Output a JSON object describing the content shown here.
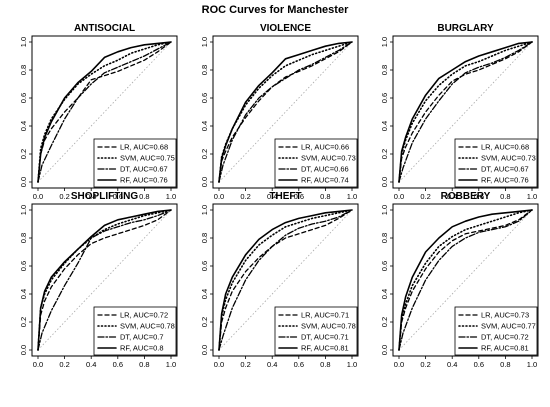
{
  "page": {
    "title": "ROC Curves for Manchester"
  },
  "legend_position": "bottom-right",
  "series_styles": {
    "LR": {
      "dash": "4,3",
      "width": 1.3
    },
    "SVM": {
      "dash": "1,2.5",
      "width": 1.6
    },
    "DT": {
      "dash": "6,2,1.5,2",
      "width": 1.3
    },
    "RF": {
      "dash": "",
      "width": 1.6
    }
  },
  "chart_data": [
    {
      "type": "line",
      "title": "ANTISOCIAL",
      "xlim": [
        0,
        1
      ],
      "ylim": [
        0,
        1
      ],
      "xticks": [
        "0.0",
        "0.2",
        "0.4",
        "0.6",
        "0.8",
        "1.0"
      ],
      "yticks": [
        "0.0",
        "0.2",
        "0.4",
        "0.6",
        "0.8",
        "1.0"
      ],
      "reference_line": true,
      "series": [
        {
          "name": "LR",
          "label": "LR, AUC=0.68",
          "x": [
            0,
            0.02,
            0.05,
            0.1,
            0.2,
            0.3,
            0.4,
            0.5,
            0.6,
            0.7,
            0.8,
            0.9,
            1.0
          ],
          "y": [
            0,
            0.2,
            0.3,
            0.38,
            0.5,
            0.6,
            0.73,
            0.76,
            0.79,
            0.83,
            0.87,
            0.93,
            1.0
          ]
        },
        {
          "name": "SVM",
          "label": "SVM, AUC=0.75",
          "x": [
            0,
            0.02,
            0.05,
            0.1,
            0.2,
            0.3,
            0.4,
            0.5,
            0.6,
            0.7,
            0.8,
            0.9,
            1.0
          ],
          "y": [
            0,
            0.24,
            0.34,
            0.45,
            0.59,
            0.7,
            0.77,
            0.83,
            0.87,
            0.92,
            0.95,
            0.98,
            1.0
          ]
        },
        {
          "name": "DT",
          "label": "DT, AUC=0.67",
          "x": [
            0,
            0.03,
            0.1,
            0.2,
            0.3,
            0.4,
            0.5,
            0.6,
            0.7,
            0.8,
            0.9,
            1.0
          ],
          "y": [
            0,
            0.12,
            0.26,
            0.45,
            0.6,
            0.7,
            0.78,
            0.82,
            0.86,
            0.9,
            0.95,
            1.0
          ]
        },
        {
          "name": "RF",
          "label": "RF, AUC=0.76",
          "x": [
            0,
            0.02,
            0.05,
            0.1,
            0.2,
            0.3,
            0.4,
            0.5,
            0.6,
            0.7,
            0.8,
            0.9,
            1.0
          ],
          "y": [
            0,
            0.2,
            0.32,
            0.43,
            0.6,
            0.71,
            0.79,
            0.89,
            0.93,
            0.96,
            0.98,
            0.99,
            1.0
          ]
        }
      ]
    },
    {
      "type": "line",
      "title": "VIOLENCE",
      "xlim": [
        0,
        1
      ],
      "ylim": [
        0,
        1
      ],
      "xticks": [
        "0.0",
        "0.2",
        "0.4",
        "0.6",
        "0.8",
        "1.0"
      ],
      "yticks": [
        "0.0",
        "0.2",
        "0.4",
        "0.6",
        "0.8",
        "1.0"
      ],
      "reference_line": true,
      "series": [
        {
          "name": "LR",
          "label": "LR, AUC=0.66",
          "x": [
            0,
            0.02,
            0.05,
            0.1,
            0.2,
            0.3,
            0.4,
            0.5,
            0.6,
            0.7,
            0.8,
            0.9,
            1.0
          ],
          "y": [
            0,
            0.15,
            0.22,
            0.32,
            0.46,
            0.58,
            0.68,
            0.75,
            0.79,
            0.83,
            0.88,
            0.93,
            1.0
          ]
        },
        {
          "name": "SVM",
          "label": "SVM, AUC=0.73",
          "x": [
            0,
            0.02,
            0.05,
            0.1,
            0.2,
            0.3,
            0.4,
            0.5,
            0.6,
            0.7,
            0.8,
            0.9,
            1.0
          ],
          "y": [
            0,
            0.18,
            0.27,
            0.38,
            0.55,
            0.67,
            0.76,
            0.83,
            0.87,
            0.91,
            0.94,
            0.97,
            1.0
          ]
        },
        {
          "name": "DT",
          "label": "DT, AUC=0.66",
          "x": [
            0,
            0.03,
            0.1,
            0.2,
            0.3,
            0.4,
            0.5,
            0.6,
            0.7,
            0.8,
            0.9,
            1.0
          ],
          "y": [
            0,
            0.12,
            0.3,
            0.48,
            0.6,
            0.68,
            0.74,
            0.8,
            0.84,
            0.89,
            0.94,
            1.0
          ]
        },
        {
          "name": "RF",
          "label": "RF, AUC=0.74",
          "x": [
            0,
            0.02,
            0.05,
            0.1,
            0.2,
            0.3,
            0.4,
            0.5,
            0.6,
            0.7,
            0.8,
            0.9,
            1.0
          ],
          "y": [
            0,
            0.17,
            0.26,
            0.38,
            0.57,
            0.69,
            0.78,
            0.88,
            0.91,
            0.94,
            0.97,
            0.99,
            1.0
          ]
        }
      ]
    },
    {
      "type": "line",
      "title": "BURGLARY",
      "xlim": [
        0,
        1
      ],
      "ylim": [
        0,
        1
      ],
      "xticks": [
        "0.0",
        "0.2",
        "0.4",
        "0.6",
        "0.8",
        "1.0"
      ],
      "yticks": [
        "0.0",
        "0.2",
        "0.4",
        "0.6",
        "0.8",
        "1.0"
      ],
      "reference_line": true,
      "series": [
        {
          "name": "LR",
          "label": "LR, AUC=0.68",
          "x": [
            0,
            0.02,
            0.05,
            0.1,
            0.2,
            0.3,
            0.4,
            0.5,
            0.6,
            0.7,
            0.8,
            0.9,
            1.0
          ],
          "y": [
            0,
            0.17,
            0.25,
            0.35,
            0.5,
            0.62,
            0.72,
            0.77,
            0.8,
            0.84,
            0.88,
            0.93,
            1.0
          ]
        },
        {
          "name": "SVM",
          "label": "SVM, AUC=0.73",
          "x": [
            0,
            0.02,
            0.05,
            0.1,
            0.2,
            0.3,
            0.4,
            0.5,
            0.6,
            0.7,
            0.8,
            0.9,
            1.0
          ],
          "y": [
            0,
            0.2,
            0.3,
            0.42,
            0.58,
            0.69,
            0.77,
            0.83,
            0.86,
            0.9,
            0.94,
            0.97,
            1.0
          ]
        },
        {
          "name": "DT",
          "label": "DT, AUC=0.67",
          "x": [
            0,
            0.03,
            0.1,
            0.2,
            0.3,
            0.4,
            0.5,
            0.6,
            0.7,
            0.8,
            0.9,
            1.0
          ],
          "y": [
            0,
            0.1,
            0.28,
            0.45,
            0.58,
            0.7,
            0.78,
            0.82,
            0.85,
            0.89,
            0.94,
            1.0
          ]
        },
        {
          "name": "RF",
          "label": "RF, AUC=0.76",
          "x": [
            0,
            0.02,
            0.05,
            0.1,
            0.2,
            0.3,
            0.4,
            0.5,
            0.6,
            0.7,
            0.8,
            0.9,
            1.0
          ],
          "y": [
            0,
            0.22,
            0.32,
            0.45,
            0.62,
            0.74,
            0.8,
            0.86,
            0.9,
            0.93,
            0.96,
            0.99,
            1.0
          ]
        }
      ]
    },
    {
      "type": "line",
      "title": "SHOPLIFTING",
      "xlim": [
        0,
        1
      ],
      "ylim": [
        0,
        1
      ],
      "xticks": [
        "0.0",
        "0.2",
        "0.4",
        "0.6",
        "0.8",
        "1.0"
      ],
      "yticks": [
        "0.0",
        "0.2",
        "0.4",
        "0.6",
        "0.8",
        "1.0"
      ],
      "reference_line": true,
      "series": [
        {
          "name": "LR",
          "label": "LR, AUC=0.72",
          "x": [
            0,
            0.02,
            0.05,
            0.1,
            0.2,
            0.3,
            0.4,
            0.5,
            0.6,
            0.7,
            0.8,
            0.9,
            1.0
          ],
          "y": [
            0,
            0.25,
            0.35,
            0.45,
            0.58,
            0.68,
            0.76,
            0.8,
            0.83,
            0.86,
            0.89,
            0.93,
            1.0
          ]
        },
        {
          "name": "SVM",
          "label": "SVM, AUC=0.78",
          "x": [
            0,
            0.02,
            0.05,
            0.1,
            0.2,
            0.3,
            0.4,
            0.5,
            0.6,
            0.7,
            0.8,
            0.9,
            1.0
          ],
          "y": [
            0,
            0.3,
            0.4,
            0.5,
            0.62,
            0.72,
            0.8,
            0.86,
            0.9,
            0.93,
            0.96,
            0.98,
            1.0
          ]
        },
        {
          "name": "DT",
          "label": "DT, AUC=0.7",
          "x": [
            0,
            0.03,
            0.1,
            0.2,
            0.3,
            0.4,
            0.5,
            0.6,
            0.7,
            0.8,
            0.9,
            1.0
          ],
          "y": [
            0,
            0.12,
            0.28,
            0.46,
            0.62,
            0.8,
            0.85,
            0.88,
            0.91,
            0.93,
            0.96,
            1.0
          ]
        },
        {
          "name": "RF",
          "label": "RF, AUC=0.8",
          "x": [
            0,
            0.02,
            0.05,
            0.1,
            0.2,
            0.3,
            0.4,
            0.5,
            0.6,
            0.7,
            0.8,
            0.9,
            1.0
          ],
          "y": [
            0,
            0.3,
            0.42,
            0.52,
            0.63,
            0.72,
            0.81,
            0.89,
            0.93,
            0.95,
            0.97,
            0.99,
            1.0
          ]
        }
      ]
    },
    {
      "type": "line",
      "title": "THEFT",
      "xlim": [
        0,
        1
      ],
      "ylim": [
        0,
        1
      ],
      "xticks": [
        "0.0",
        "0.2",
        "0.4",
        "0.6",
        "0.8",
        "1.0"
      ],
      "yticks": [
        "0.0",
        "0.2",
        "0.4",
        "0.6",
        "0.8",
        "1.0"
      ],
      "reference_line": true,
      "series": [
        {
          "name": "LR",
          "label": "LR, AUC=0.71",
          "x": [
            0,
            0.02,
            0.05,
            0.1,
            0.2,
            0.3,
            0.4,
            0.5,
            0.6,
            0.7,
            0.8,
            0.9,
            1.0
          ],
          "y": [
            0,
            0.2,
            0.3,
            0.42,
            0.56,
            0.66,
            0.74,
            0.8,
            0.83,
            0.86,
            0.89,
            0.94,
            1.0
          ]
        },
        {
          "name": "SVM",
          "label": "SVM, AUC=0.78",
          "x": [
            0,
            0.02,
            0.05,
            0.1,
            0.2,
            0.3,
            0.4,
            0.5,
            0.6,
            0.7,
            0.8,
            0.9,
            1.0
          ],
          "y": [
            0,
            0.24,
            0.36,
            0.48,
            0.64,
            0.75,
            0.82,
            0.88,
            0.91,
            0.94,
            0.96,
            0.98,
            1.0
          ]
        },
        {
          "name": "DT",
          "label": "DT, AUC=0.71",
          "x": [
            0,
            0.03,
            0.1,
            0.2,
            0.3,
            0.4,
            0.5,
            0.6,
            0.7,
            0.8,
            0.9,
            1.0
          ],
          "y": [
            0,
            0.1,
            0.3,
            0.5,
            0.64,
            0.74,
            0.82,
            0.87,
            0.9,
            0.92,
            0.95,
            1.0
          ]
        },
        {
          "name": "RF",
          "label": "RF, AUC=0.81",
          "x": [
            0,
            0.02,
            0.05,
            0.1,
            0.2,
            0.3,
            0.4,
            0.5,
            0.6,
            0.7,
            0.8,
            0.9,
            1.0
          ],
          "y": [
            0,
            0.26,
            0.4,
            0.52,
            0.68,
            0.79,
            0.86,
            0.91,
            0.94,
            0.96,
            0.98,
            0.99,
            1.0
          ]
        }
      ]
    },
    {
      "type": "line",
      "title": "ROBBERY",
      "xlim": [
        0,
        1
      ],
      "ylim": [
        0,
        1
      ],
      "xticks": [
        "0.0",
        "0.2",
        "0.4",
        "0.6",
        "0.8",
        "1.0"
      ],
      "yticks": [
        "0.0",
        "0.2",
        "0.4",
        "0.6",
        "0.8",
        "1.0"
      ],
      "reference_line": true,
      "series": [
        {
          "name": "LR",
          "label": "LR, AUC=0.73",
          "x": [
            0,
            0.02,
            0.05,
            0.1,
            0.2,
            0.3,
            0.4,
            0.5,
            0.6,
            0.7,
            0.8,
            0.9,
            1.0
          ],
          "y": [
            0,
            0.2,
            0.3,
            0.42,
            0.58,
            0.7,
            0.78,
            0.83,
            0.85,
            0.87,
            0.89,
            0.93,
            1.0
          ]
        },
        {
          "name": "SVM",
          "label": "SVM, AUC=0.77",
          "x": [
            0,
            0.02,
            0.05,
            0.1,
            0.2,
            0.3,
            0.4,
            0.5,
            0.6,
            0.7,
            0.8,
            0.9,
            1.0
          ],
          "y": [
            0,
            0.22,
            0.33,
            0.46,
            0.62,
            0.74,
            0.81,
            0.86,
            0.89,
            0.92,
            0.95,
            0.98,
            1.0
          ]
        },
        {
          "name": "DT",
          "label": "DT, AUC=0.72",
          "x": [
            0,
            0.03,
            0.1,
            0.2,
            0.3,
            0.4,
            0.5,
            0.6,
            0.7,
            0.8,
            0.9,
            1.0
          ],
          "y": [
            0,
            0.12,
            0.3,
            0.5,
            0.64,
            0.74,
            0.8,
            0.84,
            0.86,
            0.88,
            0.92,
            1.0
          ]
        },
        {
          "name": "RF",
          "label": "RF, AUC=0.81",
          "x": [
            0,
            0.02,
            0.05,
            0.1,
            0.2,
            0.3,
            0.4,
            0.5,
            0.6,
            0.7,
            0.8,
            0.9,
            1.0
          ],
          "y": [
            0,
            0.25,
            0.38,
            0.52,
            0.7,
            0.8,
            0.88,
            0.92,
            0.95,
            0.97,
            0.98,
            0.99,
            1.0
          ]
        }
      ]
    }
  ]
}
